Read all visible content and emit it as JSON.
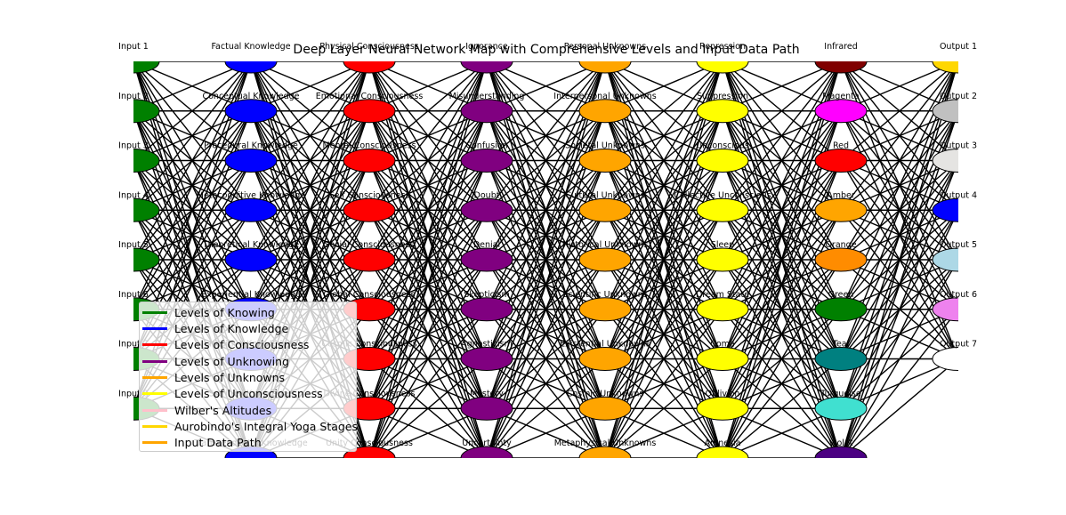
{
  "title": "Deep Layer Neural Network Map with Comprehensive Levels and Input Data Path",
  "layers": [
    {
      "name": "Levels of Knowing",
      "legend_color": "#008000",
      "nodes": [
        {
          "label": "Input 1",
          "color": "#008000"
        },
        {
          "label": "Input 2",
          "color": "#008000"
        },
        {
          "label": "Input 3",
          "color": "#008000"
        },
        {
          "label": "Input 4",
          "color": "#008000"
        },
        {
          "label": "Input 5",
          "color": "#008000"
        },
        {
          "label": "Input 6",
          "color": "#008000"
        },
        {
          "label": "Input 7",
          "color": "#008000"
        },
        {
          "label": "Input 8",
          "color": "#008000"
        }
      ]
    },
    {
      "name": "Levels of Knowledge",
      "legend_color": "#0000ff",
      "nodes": [
        {
          "label": "Factual Knowledge",
          "color": "#0000ff"
        },
        {
          "label": "Conceptual Knowledge",
          "color": "#0000ff"
        },
        {
          "label": "Procedural Knowledge",
          "color": "#0000ff"
        },
        {
          "label": "Metacognitive Knowledge",
          "color": "#0000ff"
        },
        {
          "label": "Theoretical Knowledge",
          "color": "#0000ff"
        },
        {
          "label": "Experiential Knowledge",
          "color": "#0000ff"
        },
        {
          "label": "Intuitive Knowledge",
          "color": "#0000ff"
        },
        {
          "label": "Spiritual Knowledge",
          "color": "#0000ff"
        },
        {
          "label": "Transcendental Knowledge",
          "color": "#0000ff"
        }
      ]
    },
    {
      "name": "Levels of Consciousness",
      "legend_color": "#ff0000",
      "nodes": [
        {
          "label": "Physical Consciousness",
          "color": "#ff0000"
        },
        {
          "label": "Emotional Consciousness",
          "color": "#ff0000"
        },
        {
          "label": "Mental Consciousness",
          "color": "#ff0000"
        },
        {
          "label": "Self Consciousness",
          "color": "#ff0000"
        },
        {
          "label": "Social Consciousness",
          "color": "#ff0000"
        },
        {
          "label": "Global Consciousness",
          "color": "#ff0000"
        },
        {
          "label": "Cosmic Consciousness",
          "color": "#ff0000"
        },
        {
          "label": "Divine Consciousness",
          "color": "#ff0000"
        },
        {
          "label": "Unity Consciousness",
          "color": "#ff0000"
        }
      ]
    },
    {
      "name": "Levels of Unknowing",
      "legend_color": "#800080",
      "nodes": [
        {
          "label": "Ignorance",
          "color": "#800080"
        },
        {
          "label": "Misunderstanding",
          "color": "#800080"
        },
        {
          "label": "Confusion",
          "color": "#800080"
        },
        {
          "label": "Doubt",
          "color": "#800080"
        },
        {
          "label": "Denial",
          "color": "#800080"
        },
        {
          "label": "Skepticism",
          "color": "#800080"
        },
        {
          "label": "Agnosticism",
          "color": "#800080"
        },
        {
          "label": "Mystery",
          "color": "#800080"
        },
        {
          "label": "Uncertainty",
          "color": "#800080"
        }
      ]
    },
    {
      "name": "Levels of Unknowns",
      "legend_color": "#ffa500",
      "nodes": [
        {
          "label": "Personal Unknowns",
          "color": "#ffa500"
        },
        {
          "label": "Interpersonal Unknowns",
          "color": "#ffa500"
        },
        {
          "label": "Societal Unknowns",
          "color": "#ffa500"
        },
        {
          "label": "Cultural Unknowns",
          "color": "#ffa500"
        },
        {
          "label": "Historical Unknowns",
          "color": "#ffa500"
        },
        {
          "label": "Scientific Unknowns",
          "color": "#ffa500"
        },
        {
          "label": "Existential Unknowns",
          "color": "#ffa500"
        },
        {
          "label": "Cosmic Unknowns",
          "color": "#ffa500"
        },
        {
          "label": "Metaphysical Unknowns",
          "color": "#ffa500"
        }
      ]
    },
    {
      "name": "Levels of Unconsciousness",
      "legend_color": "#ffff00",
      "nodes": [
        {
          "label": "Repression",
          "color": "#ffff00"
        },
        {
          "label": "Suppression",
          "color": "#ffff00"
        },
        {
          "label": "Unconscious",
          "color": "#ffff00"
        },
        {
          "label": "Collective Unconscious",
          "color": "#ffff00"
        },
        {
          "label": "Sleep",
          "color": "#ffff00"
        },
        {
          "label": "Dream State",
          "color": "#ffff00"
        },
        {
          "label": "Coma",
          "color": "#ffff00"
        },
        {
          "label": "Oblivion",
          "color": "#ffff00"
        },
        {
          "label": "Amnesia",
          "color": "#ffff00"
        }
      ]
    },
    {
      "name": "Wilber's Altitudes",
      "legend_color": "#ffc0cb",
      "nodes": [
        {
          "label": "Infrared",
          "color": "#800000"
        },
        {
          "label": "Magenta",
          "color": "#ff00ff"
        },
        {
          "label": "Red",
          "color": "#ff0000"
        },
        {
          "label": "Amber",
          "color": "#ffa500"
        },
        {
          "label": "Orange",
          "color": "#ff8c00"
        },
        {
          "label": "Green",
          "color": "#008000"
        },
        {
          "label": "Teal",
          "color": "#008080"
        },
        {
          "label": "Turquoise",
          "color": "#40e0d0"
        },
        {
          "label": "Violet",
          "color": "#4b0082"
        }
      ]
    },
    {
      "name": "Aurobindo's Integral Yoga Stages",
      "legend_color": "#ffd700",
      "nodes": [
        {
          "label": "Output 1",
          "color": "#ffd700"
        },
        {
          "label": "Output 2",
          "color": "#c0c0c0"
        },
        {
          "label": "Output 3",
          "color": "#e5e4e2"
        },
        {
          "label": "Output 4",
          "color": "#0000ff"
        },
        {
          "label": "Output 5",
          "color": "#add8e6"
        },
        {
          "label": "Output 6",
          "color": "#ee82ee"
        },
        {
          "label": "Output 7",
          "color": "#ffffff"
        }
      ]
    }
  ],
  "input_path": {
    "name": "Input Data Path",
    "legend_color": "#ffa500"
  },
  "legend": [
    {
      "label": "Levels of Knowing",
      "color": "#008000"
    },
    {
      "label": "Levels of Knowledge",
      "color": "#0000ff"
    },
    {
      "label": "Levels of Consciousness",
      "color": "#ff0000"
    },
    {
      "label": "Levels of Unknowing",
      "color": "#800080"
    },
    {
      "label": "Levels of Unknowns",
      "color": "#ffa500"
    },
    {
      "label": "Levels of Unconsciousness",
      "color": "#ffff00"
    },
    {
      "label": "Wilber's Altitudes",
      "color": "#ffc0cb"
    },
    {
      "label": "Aurobindo's Integral Yoga Stages",
      "color": "#ffd700"
    },
    {
      "label": "Input Data Path",
      "color": "#ffa500"
    }
  ]
}
